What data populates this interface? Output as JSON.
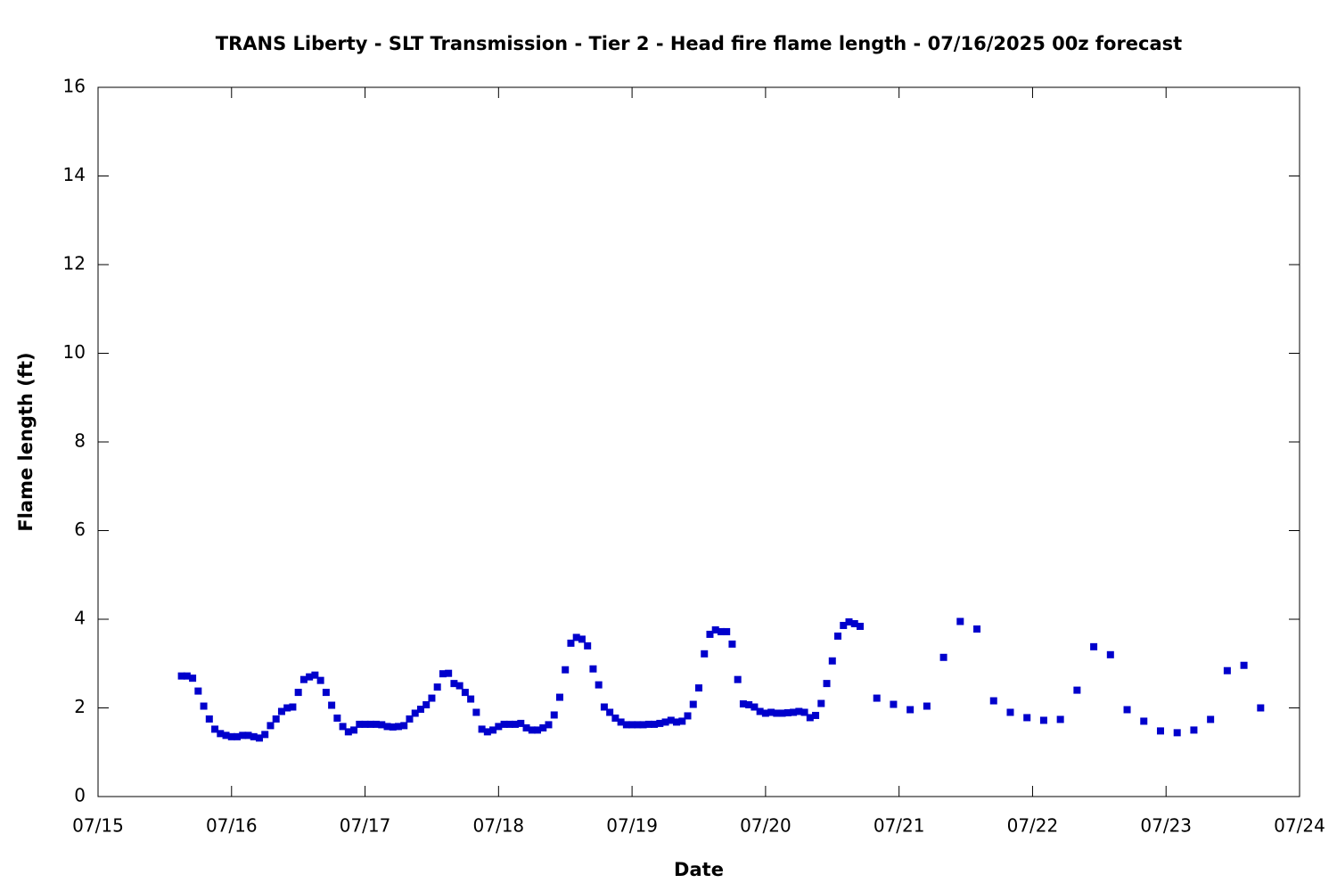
{
  "chart_data": {
    "type": "scatter",
    "title": "TRANS Liberty - SLT Transmission - Tier 2 - Head fire flame length - 07/16/2025 00z forecast",
    "xlabel": "Date",
    "ylabel": "Flame length (ft)",
    "xlim": [
      0,
      216
    ],
    "xticks": [
      {
        "value": 0,
        "label": "07/15"
      },
      {
        "value": 24,
        "label": "07/16"
      },
      {
        "value": 48,
        "label": "07/17"
      },
      {
        "value": 72,
        "label": "07/18"
      },
      {
        "value": 96,
        "label": "07/19"
      },
      {
        "value": 120,
        "label": "07/20"
      },
      {
        "value": 144,
        "label": "07/21"
      },
      {
        "value": 168,
        "label": "07/22"
      },
      {
        "value": 192,
        "label": "07/23"
      },
      {
        "value": 216,
        "label": "07/24"
      }
    ],
    "ylim": [
      0,
      16
    ],
    "yticks": [
      0,
      2,
      4,
      6,
      8,
      10,
      12,
      14,
      16
    ],
    "grid": false,
    "series": [
      {
        "color": "#0000cc",
        "x": [
          15,
          16,
          17,
          18,
          19,
          20,
          21,
          22,
          23,
          24,
          25,
          26,
          27,
          28,
          29,
          30,
          31,
          32,
          33,
          34,
          35,
          36,
          37,
          38,
          39,
          40,
          41,
          42,
          43,
          44,
          45,
          46,
          47,
          48,
          49,
          50,
          51,
          52,
          53,
          54,
          55,
          56,
          57,
          58,
          59,
          60,
          61,
          62,
          63,
          64,
          65,
          66,
          67,
          68,
          69,
          70,
          71,
          72,
          73,
          74,
          75,
          76,
          77,
          78,
          79,
          80,
          81,
          82,
          83,
          84,
          85,
          86,
          87,
          88,
          89,
          90,
          91,
          92,
          93,
          94,
          95,
          96,
          97,
          98,
          99,
          100,
          101,
          102,
          103,
          104,
          105,
          106,
          107,
          108,
          109,
          110,
          111,
          112,
          113,
          114,
          115,
          116,
          117,
          118,
          119,
          120,
          121,
          122,
          123,
          124,
          125,
          126,
          127,
          128,
          129,
          130,
          131,
          132,
          133,
          134,
          135,
          136,
          137,
          140,
          143,
          146,
          149,
          152,
          155,
          158,
          161,
          164,
          167,
          170,
          173,
          176,
          179,
          182,
          185,
          188,
          191,
          194,
          197,
          200,
          203,
          206,
          209
        ],
        "values": [
          2.72,
          2.72,
          2.67,
          2.38,
          2.04,
          1.75,
          1.52,
          1.42,
          1.38,
          1.35,
          1.35,
          1.38,
          1.38,
          1.35,
          1.32,
          1.4,
          1.6,
          1.75,
          1.92,
          2.0,
          2.02,
          2.35,
          2.64,
          2.7,
          2.74,
          2.62,
          2.35,
          2.06,
          1.77,
          1.58,
          1.46,
          1.5,
          1.63,
          1.63,
          1.63,
          1.63,
          1.62,
          1.58,
          1.57,
          1.58,
          1.6,
          1.75,
          1.88,
          1.97,
          2.07,
          2.22,
          2.47,
          2.77,
          2.78,
          2.55,
          2.5,
          2.35,
          2.2,
          1.9,
          1.52,
          1.46,
          1.5,
          1.58,
          1.63,
          1.63,
          1.63,
          1.65,
          1.55,
          1.5,
          1.5,
          1.55,
          1.62,
          1.84,
          2.24,
          2.86,
          3.46,
          3.59,
          3.55,
          3.4,
          2.88,
          2.52,
          2.02,
          1.9,
          1.77,
          1.68,
          1.62,
          1.62,
          1.62,
          1.62,
          1.63,
          1.63,
          1.65,
          1.68,
          1.72,
          1.68,
          1.7,
          1.82,
          2.08,
          2.45,
          3.22,
          3.66,
          3.76,
          3.72,
          3.72,
          3.44,
          2.64,
          2.09,
          2.07,
          2.02,
          1.92,
          1.88,
          1.9,
          1.88,
          1.88,
          1.89,
          1.9,
          1.92,
          1.9,
          1.78,
          1.83,
          2.1,
          2.55,
          3.06,
          3.62,
          3.86,
          3.94,
          3.9,
          3.84,
          2.22,
          2.08,
          1.96,
          2.04,
          3.14,
          3.95,
          3.78,
          2.16,
          1.9,
          1.78,
          1.72,
          1.74,
          2.4,
          3.38,
          3.2,
          1.96,
          1.7,
          1.48,
          1.44,
          1.5,
          1.74,
          2.84,
          2.96,
          2.0
        ]
      }
    ]
  }
}
